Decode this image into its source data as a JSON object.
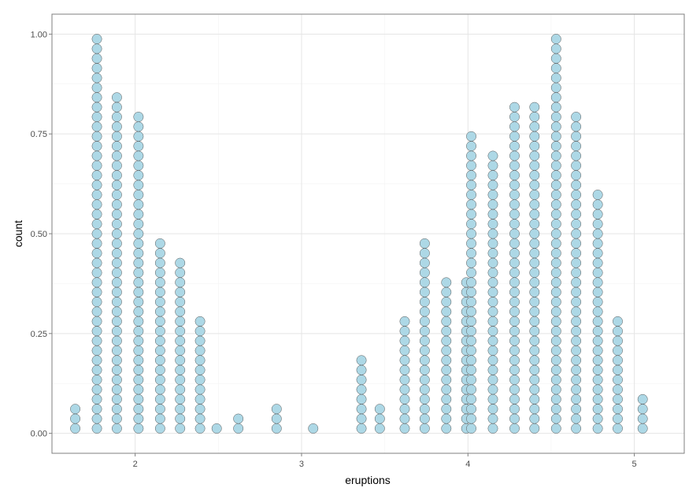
{
  "chart_data": {
    "type": "dotplot",
    "xlabel": "eruptions",
    "ylabel": "count",
    "xlim": [
      1.5,
      5.3
    ],
    "ylim": [
      -0.05,
      1.05
    ],
    "x_ticks": [
      2,
      3,
      4,
      5
    ],
    "x_tick_labels": [
      "2",
      "3",
      "4",
      "5"
    ],
    "y_ticks": [
      0,
      0.25,
      0.5,
      0.75,
      1.0
    ],
    "y_tick_labels": [
      "0.00",
      "0.25",
      "0.50",
      "0.75",
      "1.00"
    ],
    "grid": true,
    "dot_fill": "#add8e6",
    "dot_stroke": "#555555",
    "stacks": [
      {
        "x": 1.64,
        "count": 3
      },
      {
        "x": 1.77,
        "count": 41
      },
      {
        "x": 1.89,
        "count": 35
      },
      {
        "x": 2.02,
        "count": 33
      },
      {
        "x": 2.15,
        "count": 20
      },
      {
        "x": 2.27,
        "count": 18
      },
      {
        "x": 2.39,
        "count": 12
      },
      {
        "x": 2.49,
        "count": 1
      },
      {
        "x": 2.62,
        "count": 2
      },
      {
        "x": 2.85,
        "count": 3
      },
      {
        "x": 3.07,
        "count": 1
      },
      {
        "x": 3.36,
        "count": 8
      },
      {
        "x": 3.47,
        "count": 3
      },
      {
        "x": 3.62,
        "count": 12
      },
      {
        "x": 3.74,
        "count": 20
      },
      {
        "x": 3.87,
        "count": 16
      },
      {
        "x": 3.99,
        "count": 16
      },
      {
        "x": 4.02,
        "count": 31
      },
      {
        "x": 4.15,
        "count": 29
      },
      {
        "x": 4.28,
        "count": 34
      },
      {
        "x": 4.4,
        "count": 34
      },
      {
        "x": 4.53,
        "count": 41
      },
      {
        "x": 4.65,
        "count": 33
      },
      {
        "x": 4.78,
        "count": 25
      },
      {
        "x": 4.9,
        "count": 12
      },
      {
        "x": 5.05,
        "count": 4
      }
    ]
  }
}
